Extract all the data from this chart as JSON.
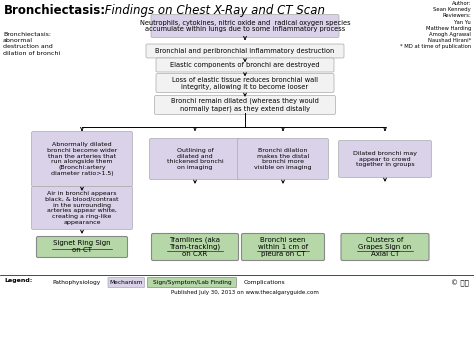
{
  "bg_color": "#ffffff",
  "box_lavender": "#d9d2e9",
  "box_gray": "#f2f2f2",
  "box_green": "#b6d7a8",
  "title_bold": "Bronchiectasis:",
  "title_italic": " Findings on Chest X-Ray and CT Scan",
  "author": "Author:\nSean Kennedy\nReviewers:\nYan Yu\nMatthew Harding\nAmogh Agrawal\nNaushad Hirani*\n* MD at time of publication",
  "left_def": "Bronchiectasis:\nabnormal\ndestruction and\ndilation of bronchi",
  "box1": "Neutrophils, cytokines, nitric oxide and  radical oxygen species\naccumulate within lungs due to some inflammatory process",
  "box2": "Bronchial and peribronchial inflammatory destruction",
  "box3": "Elastic components of bronchi are destroyed",
  "box4": "Loss of elastic tissue reduces bronchial wall\nintegrity, allowing it to become looser",
  "box5": "Bronchi remain dilated (whereas they would\nnormally taper) as they extend distally",
  "boxL1": "Abnormally dilated\nbronchi become wider\nthan the arteries that\nrun alongside them\n(Bronchi:artery\ndiameter ratio>1.5)",
  "boxL2": "Air in bronchi appears\nblack, & blood/contrast\nin the surrounding\narteries appear white,\ncreating a ring-like\nappearance",
  "boxL3": "Signet Ring Sign\non CT",
  "boxM1": "Outlining of\ndilated and\nthickened bronchi\non imaging",
  "boxM2": "Tramlines (aka\nTram-tracking)\non CXR",
  "boxR1": "Bronchi dilation\nmakes the distal\nbronchi more\nvisible on imaging",
  "boxR2": "Bronchi seen\nwithin 1 cm of\npleura on CT",
  "boxFR1": "Dilated bronchi may\nappear to crowd\ntogether in groups",
  "boxFR2": "Clusters of\nGrapes Sign on\nAxial CT",
  "footer": "Published July 30, 2013 on www.thecalgaryguide.com",
  "legend_labels": [
    "Pathophysiology",
    "Mechanism",
    "Sign/Symptom/Lab Finding",
    "Complications"
  ]
}
